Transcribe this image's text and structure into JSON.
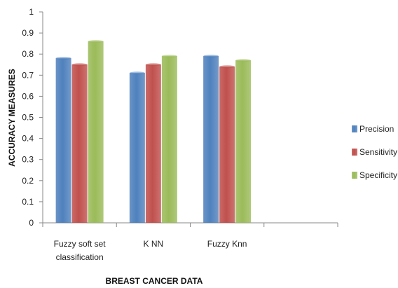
{
  "chart_data": {
    "type": "bar",
    "categories": [
      "Fuzzy soft set classification",
      "K NN",
      "Fuzzy Knn",
      ""
    ],
    "category_lines": [
      [
        "Fuzzy soft set",
        "classification"
      ],
      [
        "K NN"
      ],
      [
        "Fuzzy Knn"
      ],
      []
    ],
    "series": [
      {
        "name": "Precision",
        "values": [
          0.78,
          0.71,
          0.79,
          null
        ],
        "color": "#4f81bd"
      },
      {
        "name": "Sensitivity",
        "values": [
          0.75,
          0.75,
          0.74,
          null
        ],
        "color": "#c0504d"
      },
      {
        "name": "Specificity",
        "values": [
          0.86,
          0.79,
          0.77,
          null
        ],
        "color": "#9bbb59"
      }
    ],
    "xlabel": "BREAST CANCER DATA",
    "ylabel": "ACCURACY MEASURES",
    "ylim": [
      0,
      1
    ],
    "yticks": [
      "0",
      "0.1",
      "0.2",
      "0.3",
      "0.4",
      "0.5",
      "0.6",
      "0.7",
      "0.8",
      "0.9",
      "1"
    ],
    "grid": false,
    "legend": "right"
  }
}
